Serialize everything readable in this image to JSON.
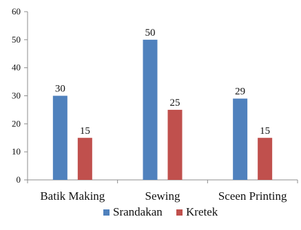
{
  "chart_data": {
    "type": "bar",
    "categories": [
      "Batik Making",
      "Sewing",
      "Sceen Printing"
    ],
    "series": [
      {
        "name": "Srandakan",
        "values": [
          30,
          50,
          29
        ],
        "color": "#4f81bd"
      },
      {
        "name": "Kretek",
        "values": [
          15,
          25,
          15
        ],
        "color": "#c0504d"
      }
    ],
    "ylim": [
      0,
      60
    ],
    "yticks": [
      0,
      10,
      20,
      30,
      40,
      50,
      60
    ],
    "grid": false,
    "data_labels": true,
    "legend_position": "bottom"
  }
}
